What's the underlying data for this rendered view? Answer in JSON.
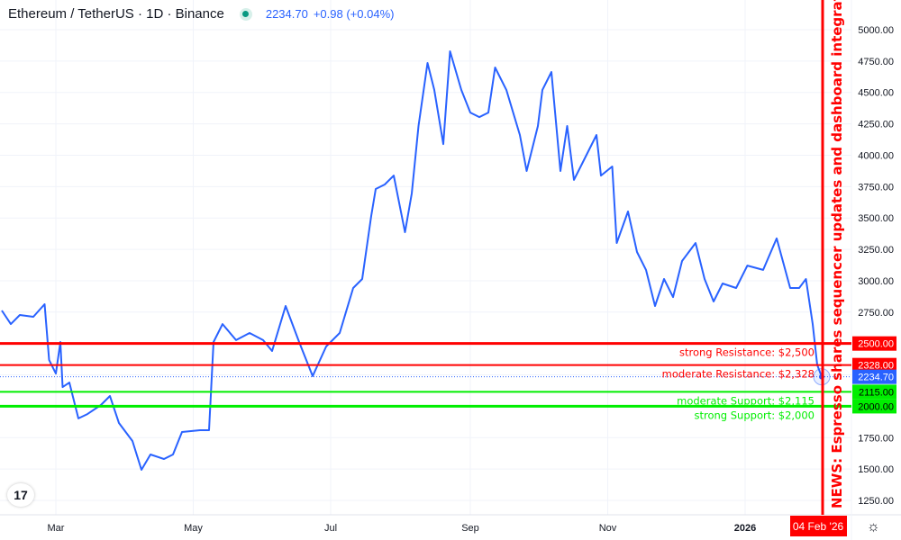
{
  "header": {
    "symbol": "Ethereum / TetherUS · 1D · Binance",
    "status_color": "#089981",
    "last_price": "2234.70",
    "change": "+0.98 (+0.04%)"
  },
  "news": "NEWS: Espresso shares sequencer updates and dashboard integrations boost",
  "crosshair_date_label": "04 Feb '26",
  "colors": {
    "line": "#2962ff",
    "resistance": "#ff0000",
    "support": "#00ee00",
    "grid": "#f0f3fa"
  },
  "chart_data": {
    "type": "line",
    "y_ticks": [
      "5000.00",
      "4750.00",
      "4500.00",
      "4250.00",
      "4000.00",
      "3750.00",
      "3500.00",
      "3250.00",
      "3000.00",
      "2750.00",
      "2500.00",
      "2250.00",
      "2000.00",
      "1750.00",
      "1500.00",
      "1250.00"
    ],
    "ylim": [
      1150,
      5150
    ],
    "x_ticks": [
      {
        "label": "Mar",
        "date": "2025-03-01"
      },
      {
        "label": "May",
        "date": "2025-05-01"
      },
      {
        "label": "Jul",
        "date": "2025-07-01"
      },
      {
        "label": "Sep",
        "date": "2025-09-01"
      },
      {
        "label": "Nov",
        "date": "2025-11-01"
      },
      {
        "label": "2026",
        "date": "2026-01-01"
      }
    ],
    "xlim": [
      "2025-02-05",
      "2026-02-17"
    ],
    "series": [
      {
        "dates": [
          "2025-02-05",
          "2025-02-09",
          "2025-02-13",
          "2025-02-19",
          "2025-02-24",
          "2025-02-26",
          "2025-03-01",
          "2025-03-03",
          "2025-03-04",
          "2025-03-07",
          "2025-03-11",
          "2025-03-15",
          "2025-03-21",
          "2025-03-25",
          "2025-03-29",
          "2025-04-04",
          "2025-04-08",
          "2025-04-12",
          "2025-04-18",
          "2025-04-22",
          "2025-04-26",
          "2025-05-04",
          "2025-05-08",
          "2025-05-10",
          "2025-05-14",
          "2025-05-20",
          "2025-05-26",
          "2025-06-01",
          "2025-06-05",
          "2025-06-11",
          "2025-06-17",
          "2025-06-23",
          "2025-06-29",
          "2025-07-05",
          "2025-07-11",
          "2025-07-15",
          "2025-07-19",
          "2025-07-21",
          "2025-07-25",
          "2025-07-29",
          "2025-08-03",
          "2025-08-06",
          "2025-08-09",
          "2025-08-13",
          "2025-08-16",
          "2025-08-20",
          "2025-08-23",
          "2025-08-28",
          "2025-09-01",
          "2025-09-05",
          "2025-09-09",
          "2025-09-12",
          "2025-09-17",
          "2025-09-23",
          "2025-09-26",
          "2025-10-01",
          "2025-10-03",
          "2025-10-07",
          "2025-10-11",
          "2025-10-14",
          "2025-10-17",
          "2025-10-21",
          "2025-10-27",
          "2025-10-29",
          "2025-11-03",
          "2025-11-05",
          "2025-11-10",
          "2025-11-14",
          "2025-11-18",
          "2025-11-22",
          "2025-11-26",
          "2025-11-30",
          "2025-12-04",
          "2025-12-10",
          "2025-12-14",
          "2025-12-18",
          "2025-12-22",
          "2025-12-28",
          "2026-01-02",
          "2026-01-09",
          "2026-01-15",
          "2026-01-21",
          "2026-01-25",
          "2026-01-28",
          "2026-01-31",
          "2026-02-02",
          "2026-02-04"
        ],
        "values": [
          2763,
          2655,
          2727,
          2713,
          2813,
          2369,
          2260,
          2512,
          2153,
          2189,
          1903,
          1938,
          2010,
          2082,
          1867,
          1723,
          1494,
          1616,
          1580,
          1616,
          1795,
          1809,
          1809,
          2512,
          2655,
          2527,
          2584,
          2527,
          2440,
          2799,
          2512,
          2240,
          2476,
          2584,
          2942,
          3014,
          3516,
          3731,
          3767,
          3838,
          3387,
          3695,
          4233,
          4735,
          4520,
          4089,
          4828,
          4520,
          4340,
          4304,
          4340,
          4699,
          4520,
          4161,
          3874,
          4233,
          4520,
          4663,
          3874,
          4233,
          3803,
          3946,
          4161,
          3838,
          3910,
          3301,
          3552,
          3229,
          3086,
          2799,
          3014,
          2870,
          3157,
          3301,
          3014,
          2835,
          2978,
          2942,
          3121,
          3086,
          3337,
          2942,
          2942,
          3014,
          2655,
          2330,
          2234.7
        ]
      }
    ],
    "levels": [
      {
        "label": "strong Resistance: $2,500",
        "value": 2500,
        "axis_label": "2500.00",
        "kind": "resistance",
        "strength": "strong"
      },
      {
        "label": "moderate Resistance: $2,328",
        "value": 2328,
        "axis_label": "2328.00",
        "kind": "resistance",
        "strength": "moderate"
      },
      {
        "label": "moderate Support: $2,115",
        "value": 2115,
        "axis_label": "2115.00",
        "kind": "support",
        "strength": "moderate"
      },
      {
        "label": "strong Support: $2,000",
        "value": 2000,
        "axis_label": "2000.00",
        "kind": "support",
        "strength": "strong"
      }
    ],
    "last_value": 2234.7,
    "last_label": "2234.70"
  }
}
